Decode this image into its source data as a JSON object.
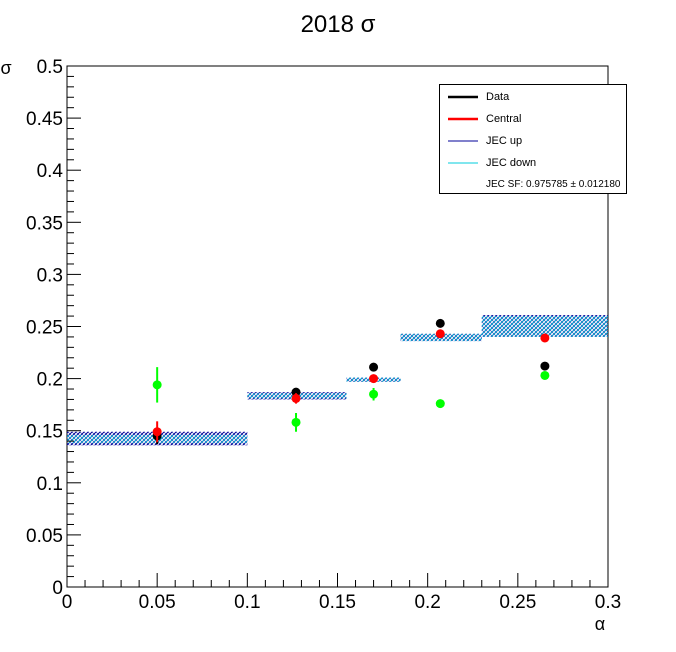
{
  "chart_data": {
    "type": "scatter",
    "title": "2018 σ",
    "xlabel": "α",
    "ylabel": "σ",
    "xlim": [
      0,
      0.3
    ],
    "ylim": [
      0,
      0.5
    ],
    "x_ticks": [
      "0",
      "0.05",
      "0.1",
      "0.15",
      "0.2",
      "0.25",
      "0.3"
    ],
    "y_ticks": [
      "0",
      "0.05",
      "0.1",
      "0.15",
      "0.2",
      "0.25",
      "0.3",
      "0.35",
      "0.4",
      "0.45",
      "0.5"
    ],
    "series": [
      {
        "name": "Data",
        "color": "#000000",
        "points": [
          {
            "x": 0.05,
            "y": 0.145,
            "err": 0.008
          },
          {
            "x": 0.127,
            "y": 0.187,
            "err": 0.004
          },
          {
            "x": 0.17,
            "y": 0.211,
            "err": 0.004
          },
          {
            "x": 0.207,
            "y": 0.253,
            "err": 0.004
          },
          {
            "x": 0.265,
            "y": 0.212,
            "err": 0.003
          }
        ]
      },
      {
        "name": "Central",
        "color": "#ff0000",
        "points": [
          {
            "x": 0.05,
            "y": 0.149,
            "err": 0.01
          },
          {
            "x": 0.127,
            "y": 0.181,
            "err": 0.005
          },
          {
            "x": 0.17,
            "y": 0.2,
            "err": 0.004
          },
          {
            "x": 0.207,
            "y": 0.243,
            "err": 0.004
          },
          {
            "x": 0.265,
            "y": 0.239,
            "err": 0.003
          }
        ]
      },
      {
        "name": "",
        "color": "#00ff00",
        "points": [
          {
            "x": 0.05,
            "y": 0.194,
            "err": 0.017
          },
          {
            "x": 0.127,
            "y": 0.158,
            "err": 0.009
          },
          {
            "x": 0.17,
            "y": 0.185,
            "err": 0.006
          },
          {
            "x": 0.207,
            "y": 0.176,
            "err": 0.004
          },
          {
            "x": 0.265,
            "y": 0.203,
            "err": 0.003
          }
        ]
      }
    ],
    "jec_bands": [
      {
        "x0": 0.0,
        "x1": 0.1,
        "up": [
          0.136,
          0.149
        ],
        "down": [
          0.138,
          0.146
        ]
      },
      {
        "x0": 0.1,
        "x1": 0.155,
        "up": [
          0.18,
          0.187
        ],
        "down": [
          0.181,
          0.186
        ]
      },
      {
        "x0": 0.155,
        "x1": 0.185,
        "up": [
          0.197,
          0.201
        ],
        "down": [
          0.197,
          0.201
        ]
      },
      {
        "x0": 0.185,
        "x1": 0.23,
        "up": [
          0.236,
          0.243
        ],
        "down": [
          0.236,
          0.243
        ]
      },
      {
        "x0": 0.23,
        "x1": 0.3,
        "up": [
          0.24,
          0.261
        ],
        "down": [
          0.24,
          0.26
        ]
      }
    ],
    "legend": {
      "placement": "top-right",
      "entries": [
        {
          "label": "Data",
          "color": "#000000",
          "kind": "line"
        },
        {
          "label": "Central",
          "color": "#ff0000",
          "kind": "line"
        },
        {
          "label": "JEC up",
          "color": "#000099",
          "kind": "line"
        },
        {
          "label": "JEC down",
          "color": "#00ccdd",
          "kind": "line"
        },
        {
          "label": "JEC SF: 0.975785 ± 0.012180",
          "color": "",
          "kind": "text"
        }
      ]
    },
    "colors": {
      "jec_up": "#000099",
      "jec_down": "#00ccdd"
    },
    "grid": false
  }
}
